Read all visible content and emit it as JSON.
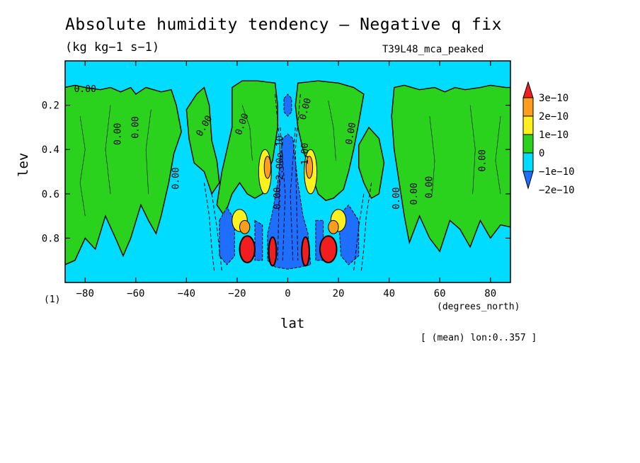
{
  "title": "Absolute humidity tendency — Negative q fix",
  "units": "(kg kg−1 s−1)",
  "run_name": "T39L48_mca_peaked",
  "figure_number": "(1)",
  "footnote": "[ (mean) lon:0..357 ]",
  "colors": {
    "level_neg2": "#1e6eff",
    "level_neg1": "#00dcff",
    "level_0": "#2ad21e",
    "level_1": "#fff01e",
    "level_2": "#ff9e1e",
    "level_3": "#f01e1e"
  },
  "chart_data": {
    "type": "heatmap",
    "title": "Absolute humidity tendency — Negative q fix",
    "subtitle": "(kg kg−1 s−1)",
    "xlabel": "lat",
    "x_units": "(degrees_north)",
    "ylabel": "lev",
    "xlim": [
      -87.9,
      87.9
    ],
    "ylim": [
      1.0,
      0.0
    ],
    "x_ticks": [
      -80,
      -60,
      -40,
      -20,
      0,
      20,
      40,
      60,
      80
    ],
    "x_tick_labels": [
      "−80",
      "−60",
      "−40",
      "−20",
      "0",
      "20",
      "40",
      "60",
      "80"
    ],
    "y_ticks": [
      0.2,
      0.4,
      0.6,
      0.8
    ],
    "y_tick_labels": [
      "0.2",
      "0.4",
      "0.6",
      "0.8"
    ],
    "colorbar": {
      "levels": [
        -2e-10,
        -1e-10,
        0,
        1e-10,
        2e-10,
        3e-10
      ],
      "labels": [
        "−2e−10",
        "−1e−10",
        "0",
        "1e−10",
        "2e−10",
        "3e−10"
      ],
      "extend": "both"
    },
    "contour_labels": [
      "0.00",
      "0.00",
      "0.00",
      "0.00",
      "0.00",
      "0.00",
      "0.00",
      "0.00",
      "0.00",
      "0.00",
      "0.00",
      "0.00",
      "0.00",
      "−2.00e−10",
      "1.00"
    ],
    "features": [
      {
        "lat": -16,
        "lev": 0.85,
        "value": 3e-10,
        "note": "positive maximum"
      },
      {
        "lat": -6,
        "lev": 0.86,
        "value": 3e-10
      },
      {
        "lat": 7,
        "lev": 0.86,
        "value": 3e-10
      },
      {
        "lat": 16,
        "lev": 0.85,
        "value": 3e-10
      },
      {
        "lat": 0,
        "lev": 0.6,
        "value": -2e-10,
        "note": "negative minimum near equator"
      },
      {
        "lat": -25,
        "lev": 0.8,
        "value": -2e-10
      },
      {
        "lat": 26,
        "lev": 0.8,
        "value": -2e-10
      }
    ]
  }
}
